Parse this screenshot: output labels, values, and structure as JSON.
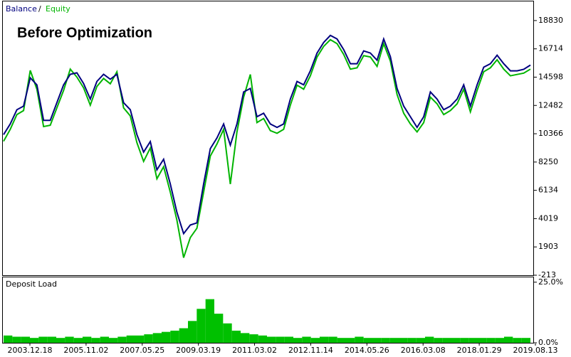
{
  "chart_data": [
    {
      "type": "line",
      "title": "Before Optimization",
      "legend_separator": "/",
      "series": [
        {
          "name": "Balance",
          "color": "#00007f",
          "values": [
            10300,
            11100,
            12160,
            12430,
            14550,
            14020,
            11370,
            11370,
            12690,
            14020,
            14810,
            14920,
            14120,
            12960,
            14280,
            14810,
            14440,
            14810,
            12690,
            12160,
            10300,
            8990,
            9780,
            7670,
            8460,
            6610,
            4490,
            2900,
            3540,
            3700,
            6610,
            9250,
            10050,
            11100,
            9520,
            11100,
            13490,
            13750,
            11640,
            11900,
            11100,
            10840,
            11100,
            12960,
            14280,
            14020,
            15070,
            16400,
            17190,
            17720,
            17450,
            16660,
            15600,
            15600,
            16560,
            16400,
            15860,
            17450,
            16130,
            13750,
            12430,
            11640,
            10840,
            11640,
            13490,
            12960,
            12160,
            12430,
            12960,
            14020,
            12430,
            14020,
            15340,
            15600,
            16240,
            15600,
            15070,
            15070,
            15180,
            15500
          ]
        },
        {
          "name": "Equity",
          "color": "#00b400",
          "values": [
            9800,
            10700,
            11800,
            12100,
            15100,
            13700,
            10900,
            11000,
            12300,
            13600,
            15200,
            14600,
            13800,
            12500,
            13900,
            14500,
            14100,
            15000,
            12300,
            11700,
            9700,
            8300,
            9300,
            7000,
            7900,
            6000,
            3900,
            1100,
            2600,
            3300,
            6000,
            8700,
            9600,
            10700,
            6600,
            10500,
            13100,
            14800,
            11200,
            11500,
            10600,
            10400,
            10700,
            12500,
            14000,
            13700,
            14700,
            16100,
            16900,
            17400,
            17100,
            16300,
            15200,
            15300,
            16200,
            16100,
            15400,
            17100,
            15800,
            13300,
            11900,
            11100,
            10500,
            11200,
            13100,
            12600,
            11800,
            12100,
            12600,
            13700,
            12000,
            13600,
            15000,
            15300,
            15900,
            15200,
            14700,
            14800,
            14900,
            15200
          ]
        }
      ],
      "ylim": [
        -213,
        20260
      ],
      "yticks": [
        18830,
        16714,
        14598,
        12482,
        10366,
        8250,
        6134,
        4019,
        1903,
        -213
      ]
    },
    {
      "type": "bar",
      "title": "Deposit Load",
      "color": "#00c000",
      "values": [
        3,
        2.5,
        2.5,
        2,
        2.5,
        2.5,
        2,
        2.5,
        2,
        2.5,
        2,
        2.5,
        2,
        2.5,
        3,
        3,
        3.5,
        4,
        4.5,
        5,
        6,
        9,
        14,
        18,
        12,
        8,
        5,
        4,
        3.5,
        3,
        2.5,
        2.5,
        2.5,
        2,
        2.5,
        2,
        2.5,
        2.5,
        2,
        2,
        2.5,
        2,
        2,
        2,
        2,
        2,
        2,
        2,
        2.5,
        2,
        2,
        2,
        2,
        2,
        2,
        2,
        2,
        2.5,
        2,
        2
      ],
      "ylim": [
        0,
        27
      ],
      "yticks": [
        {
          "value": 25,
          "label": "25.0%"
        },
        {
          "value": 0,
          "label": "0.0%"
        }
      ],
      "xticks": [
        "2003.12.18",
        "2005.11.02",
        "2007.05.25",
        "2009.03.19",
        "2011.03.02",
        "2012.11.14",
        "2014.05.26",
        "2016.03.08",
        "2018.01.29",
        "2019.08.13"
      ]
    }
  ]
}
